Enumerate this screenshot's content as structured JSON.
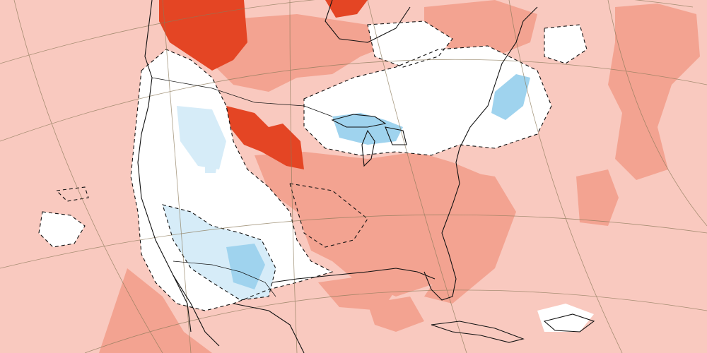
{
  "map": {
    "kind": "temperature-anomaly-map",
    "region": "North America",
    "text_labels": [],
    "colors": {
      "anomaly_light_warm": "#f9c9bf",
      "anomaly_medium_warm": "#f3a391",
      "anomaly_strong_warm": "#ee6a4e",
      "anomaly_very_strong_warm": "#e44524",
      "anomaly_neutral": "#ffffff",
      "anomaly_light_cool": "#d6ecf8",
      "anomaly_medium_cool": "#9fd3ee",
      "coastline": "#111111",
      "graticule": "#8c7a5a"
    },
    "layers": [
      {
        "id": "coastlines",
        "style": "solid black lines"
      },
      {
        "id": "state-borders",
        "style": "thin black lines"
      },
      {
        "id": "zero-contour",
        "style": "dashed black lines"
      },
      {
        "id": "graticule",
        "style": "thin brown curved lines"
      }
    ]
  }
}
